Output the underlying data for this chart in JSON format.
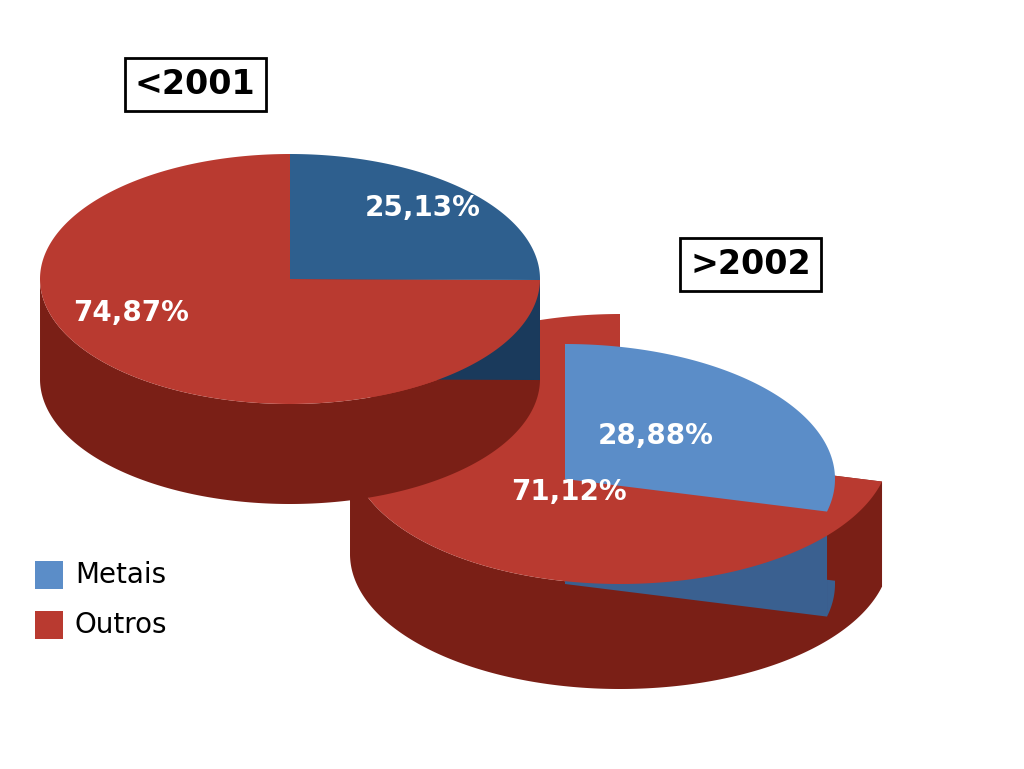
{
  "pie1_label": "<2001",
  "pie2_label": ">2002",
  "pie1_metais_pct": 25.13,
  "pie1_outros_pct": 74.87,
  "pie2_metais_pct": 28.88,
  "pie2_outros_pct": 71.12,
  "pie1_labels": [
    "25,13%",
    "74,87%"
  ],
  "pie2_labels": [
    "28,88%",
    "71,12%"
  ],
  "color_metais1_top": "#2E5F8E",
  "color_metais1_side": "#1A3A5C",
  "color_outros1_top": "#B93A30",
  "color_outros1_side": "#7A1F16",
  "color_metais2_top": "#5B8DC8",
  "color_metais2_side": "#3A6090",
  "color_outros2_top": "#B93A30",
  "color_outros2_side": "#7A1F16",
  "legend_metais_color": "#5B8DC8",
  "legend_outros_color": "#B93A30",
  "legend_labels": [
    "Metais",
    "Outros"
  ],
  "bg_color": "#FFFFFF",
  "label_color": "#FFFFFF",
  "label_fontsize": 20,
  "legend_fontsize": 20,
  "title_fontsize": 24
}
